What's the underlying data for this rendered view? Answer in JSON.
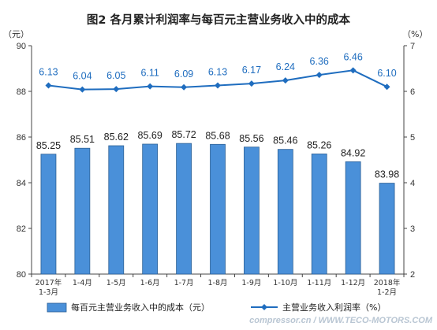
{
  "chart_data": {
    "type": "bar",
    "title": "图2 各月累计利润率与每百元主营业务收入中的成本",
    "y_left_unit": "（元）",
    "y_right_unit": "（%）",
    "ylim_left": [
      80,
      90
    ],
    "yticks_left": [
      80,
      82,
      84,
      86,
      88,
      90
    ],
    "ylim_right": [
      2,
      7
    ],
    "yticks_right": [
      2,
      3,
      4,
      5,
      6,
      7
    ],
    "categories": [
      [
        "2017年",
        "1-3月"
      ],
      [
        "1-4月"
      ],
      [
        "1-5月"
      ],
      [
        "1-6月"
      ],
      [
        "1-7月"
      ],
      [
        "1-8月"
      ],
      [
        "1-9月"
      ],
      [
        "1-10月"
      ],
      [
        "1-11月"
      ],
      [
        "1-12月"
      ],
      [
        "2018年",
        "1-2月"
      ]
    ],
    "series": [
      {
        "name": "每百元主营业务收入中的成本（元）",
        "type": "bar",
        "axis": "left",
        "color": "#4a90d9",
        "values": [
          85.25,
          85.51,
          85.62,
          85.69,
          85.72,
          85.68,
          85.56,
          85.46,
          85.26,
          84.92,
          83.98
        ]
      },
      {
        "name": "主营业务收入利润率（%）",
        "type": "line",
        "axis": "right",
        "color": "#1f6dbf",
        "values": [
          6.13,
          6.04,
          6.05,
          6.11,
          6.09,
          6.13,
          6.17,
          6.24,
          6.36,
          6.46,
          6.1
        ]
      }
    ],
    "legend_position": "bottom",
    "grid": false
  },
  "watermark": "compressor.cn / WWW.TECO-MOTORS.COM"
}
